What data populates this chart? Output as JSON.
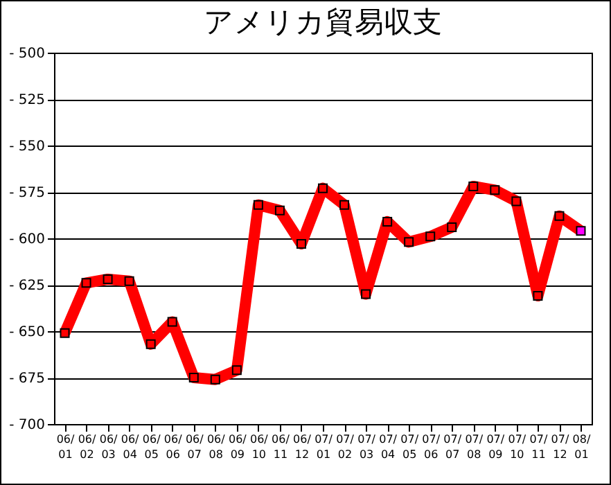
{
  "chart_data": {
    "type": "line",
    "title": "アメリカ貿易収支",
    "categories": [
      "06/01",
      "06/02",
      "06/03",
      "06/04",
      "06/05",
      "06/06",
      "06/07",
      "06/08",
      "06/09",
      "06/10",
      "06/11",
      "06/12",
      "07/01",
      "07/02",
      "07/03",
      "07/04",
      "07/05",
      "07/06",
      "07/07",
      "07/08",
      "07/09",
      "07/10",
      "07/11",
      "07/12",
      "08/01"
    ],
    "series": [
      {
        "color": "#ff0000",
        "colors": [
          "#ff0000",
          "#ff0000",
          "#ff0000",
          "#ff0000",
          "#ff0000",
          "#ff0000",
          "#ff0000",
          "#ff0000",
          "#ff0000",
          "#ff0000",
          "#ff0000",
          "#ff0000",
          "#ff0000",
          "#ff0000",
          "#ff0000",
          "#ff0000",
          "#ff0000",
          "#ff0000",
          "#ff0000",
          "#ff0000",
          "#ff0000",
          "#ff0000",
          "#ff0000",
          "#ff0000",
          "#ff00ff"
        ],
        "values": [
          -651,
          -624,
          -622,
          -623,
          -657,
          -645,
          -675,
          -676,
          -671,
          -582,
          -585,
          -603,
          -573,
          -582,
          -630,
          -591,
          -602,
          -599,
          -594,
          -572,
          -574,
          -580,
          -631,
          -588,
          -596
        ]
      }
    ],
    "ylim": [
      -700,
      -500
    ],
    "yticks": [
      -700,
      -675,
      -650,
      -625,
      -600,
      -575,
      -550,
      -525,
      -500
    ],
    "grid": "y",
    "marker": "square",
    "line_style": "solid",
    "legend": false
  }
}
